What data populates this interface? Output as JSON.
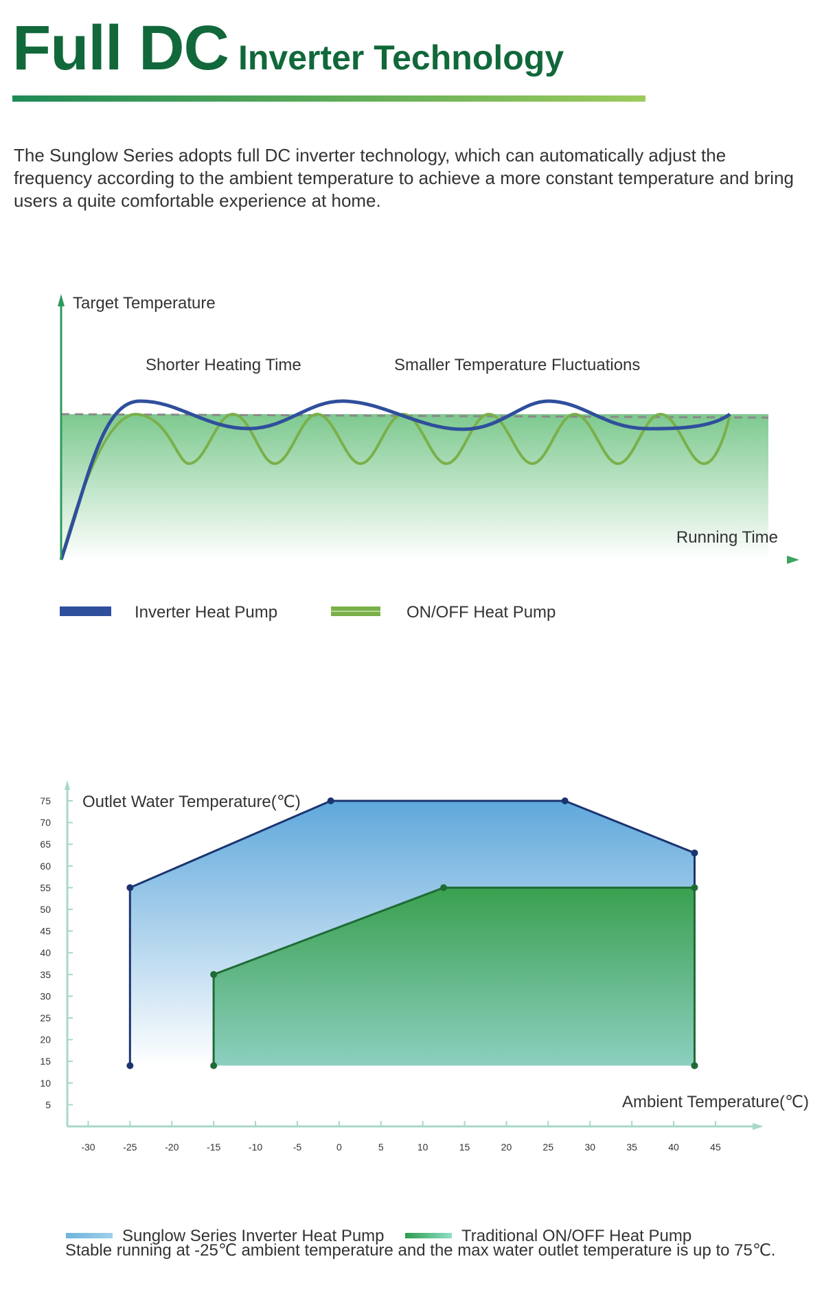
{
  "header": {
    "title_main": "Full DC",
    "title_sub": "Inverter Technology"
  },
  "intro_text": "The Sunglow Series adopts full DC inverter technology, which can automatically adjust the frequency according to the ambient temperature to achieve a more constant temperature and bring users a quite comfortable experience at home.",
  "chart_data": [
    {
      "type": "line",
      "ylabel": "Target Temperature",
      "xlabel": "Running Time",
      "annotations": [
        "Shorter Heating Time",
        "Smaller Temperature Fluctuations"
      ],
      "series": [
        {
          "name": "Inverter Heat Pump",
          "color": "#2f4f9c"
        },
        {
          "name": "ON/OFF Heat Pump",
          "color": "#7ab04a"
        }
      ],
      "legend_position": "bottom-left"
    },
    {
      "type": "area",
      "ylabel": "Outlet Water Temperature(℃)",
      "xlabel": "Ambient Temperature(℃)",
      "x_ticks": [
        -30,
        -25,
        -20,
        -15,
        -10,
        -5,
        0,
        5,
        10,
        15,
        20,
        25,
        30,
        35,
        40,
        45
      ],
      "y_ticks": [
        5,
        10,
        15,
        20,
        25,
        30,
        35,
        40,
        45,
        50,
        55,
        60,
        65,
        70,
        75
      ],
      "xlim": [
        -32.5,
        47
      ],
      "ylim": [
        0,
        78
      ],
      "series": [
        {
          "name": "Sunglow Series Inverter Heat Pump",
          "color": "#6fb3dd",
          "points": [
            [
              -25,
              14
            ],
            [
              -25,
              55
            ],
            [
              -1,
              75
            ],
            [
              27,
              75
            ],
            [
              42.5,
              63
            ],
            [
              42.5,
              14
            ]
          ]
        },
        {
          "name": "Traditional ON/OFF Heat Pump",
          "color": "#3aa04f",
          "points": [
            [
              -15,
              14
            ],
            [
              -15,
              35
            ],
            [
              12.5,
              55
            ],
            [
              42.5,
              55
            ],
            [
              42.5,
              14
            ]
          ]
        }
      ],
      "legend_position": "bottom"
    }
  ],
  "footnote": "Stable running at -25℃ ambient temperature and the max water outlet temperature is up to 75℃."
}
